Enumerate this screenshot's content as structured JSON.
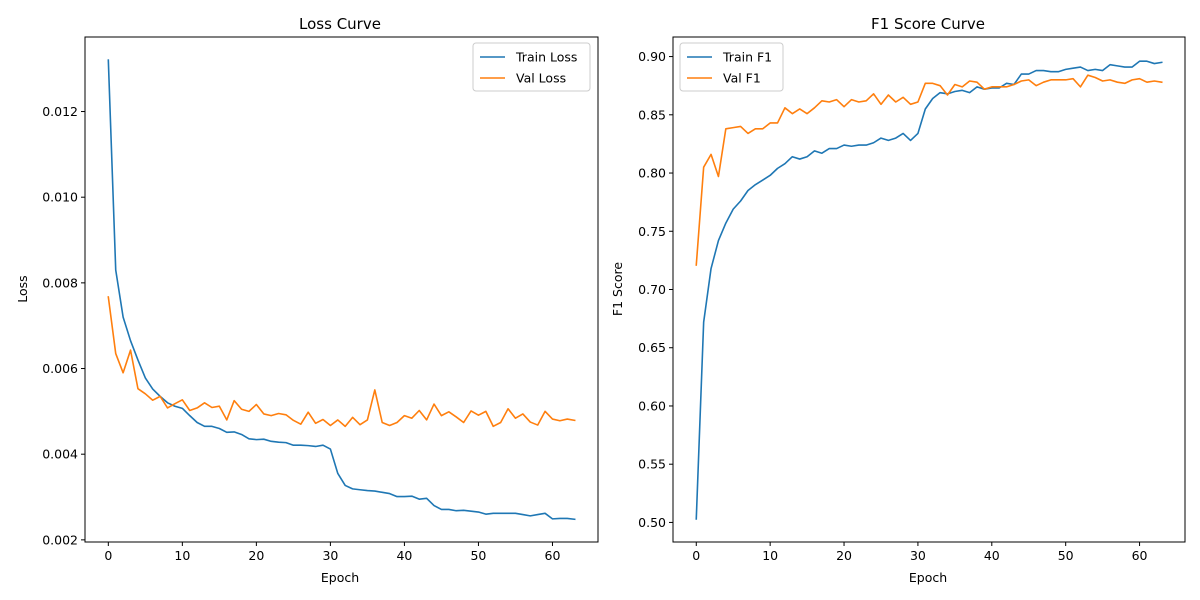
{
  "chart_data": [
    {
      "type": "line",
      "title": "Loss Curve",
      "xlabel": "Epoch",
      "ylabel": "Loss",
      "xlim": [
        -3.15,
        66.15
      ],
      "ylim": [
        0.00195,
        0.01374
      ],
      "xticks": [
        0,
        10,
        20,
        30,
        40,
        50,
        60
      ],
      "yticks": [
        0.002,
        0.004,
        0.006,
        0.008,
        0.01,
        0.012
      ],
      "ytick_labels": [
        "0.002",
        "0.004",
        "0.006",
        "0.008",
        "0.010",
        "0.012"
      ],
      "grid": false,
      "legend_position": "top-right",
      "series": [
        {
          "name": "Train Loss",
          "color": "#1f77b4",
          "values": [
            0.0132,
            0.0083,
            0.0072,
            0.00665,
            0.0062,
            0.00578,
            0.00552,
            0.00535,
            0.0052,
            0.00512,
            0.00507,
            0.0049,
            0.00474,
            0.00465,
            0.00465,
            0.0046,
            0.00451,
            0.00452,
            0.00446,
            0.00436,
            0.00434,
            0.00435,
            0.0043,
            0.00428,
            0.00427,
            0.00421,
            0.00421,
            0.0042,
            0.00418,
            0.00421,
            0.00412,
            0.00355,
            0.00327,
            0.00319,
            0.00317,
            0.00315,
            0.00314,
            0.00311,
            0.00308,
            0.00301,
            0.00301,
            0.00302,
            0.00295,
            0.00297,
            0.0028,
            0.00271,
            0.00271,
            0.00268,
            0.00269,
            0.00267,
            0.00265,
            0.0026,
            0.00262,
            0.00262,
            0.00262,
            0.00262,
            0.00259,
            0.00256,
            0.00259,
            0.00262,
            0.00249,
            0.0025,
            0.0025,
            0.00248
          ]
        },
        {
          "name": "Val Loss",
          "color": "#ff7f0e",
          "values": [
            0.00767,
            0.00635,
            0.0059,
            0.00643,
            0.00553,
            0.00541,
            0.00526,
            0.00535,
            0.00508,
            0.00518,
            0.00527,
            0.00502,
            0.00508,
            0.0052,
            0.00509,
            0.00512,
            0.0048,
            0.00525,
            0.00505,
            0.005,
            0.00516,
            0.00494,
            0.0049,
            0.00495,
            0.00492,
            0.00479,
            0.0047,
            0.00498,
            0.00472,
            0.00481,
            0.00467,
            0.0048,
            0.00465,
            0.00486,
            0.00469,
            0.0048,
            0.0055,
            0.00474,
            0.00467,
            0.00474,
            0.0049,
            0.00484,
            0.00502,
            0.0048,
            0.00517,
            0.0049,
            0.00499,
            0.00487,
            0.00474,
            0.00501,
            0.00491,
            0.005,
            0.00465,
            0.00474,
            0.00506,
            0.00484,
            0.00494,
            0.00475,
            0.00468,
            0.005,
            0.00482,
            0.00478,
            0.00482,
            0.00479
          ]
        }
      ]
    },
    {
      "type": "line",
      "title": "F1 Score Curve",
      "xlabel": "Epoch",
      "ylabel": "F1 Score",
      "xlim": [
        -3.15,
        66.15
      ],
      "ylim": [
        0.4832,
        0.9168
      ],
      "xticks": [
        0,
        10,
        20,
        30,
        40,
        50,
        60
      ],
      "yticks": [
        0.5,
        0.55,
        0.6,
        0.65,
        0.7,
        0.75,
        0.8,
        0.85,
        0.9
      ],
      "ytick_labels": [
        "0.50",
        "0.55",
        "0.60",
        "0.65",
        "0.70",
        "0.75",
        "0.80",
        "0.85",
        "0.90"
      ],
      "grid": false,
      "legend_position": "top-left",
      "series": [
        {
          "name": "Train F1",
          "color": "#1f77b4",
          "values": [
            0.503,
            0.672,
            0.718,
            0.742,
            0.757,
            0.769,
            0.776,
            0.785,
            0.79,
            0.794,
            0.798,
            0.804,
            0.808,
            0.814,
            0.812,
            0.814,
            0.819,
            0.817,
            0.821,
            0.821,
            0.824,
            0.823,
            0.824,
            0.824,
            0.826,
            0.83,
            0.828,
            0.83,
            0.834,
            0.828,
            0.834,
            0.855,
            0.864,
            0.869,
            0.868,
            0.87,
            0.871,
            0.869,
            0.874,
            0.872,
            0.873,
            0.873,
            0.877,
            0.876,
            0.885,
            0.885,
            0.888,
            0.888,
            0.887,
            0.887,
            0.889,
            0.89,
            0.891,
            0.888,
            0.889,
            0.888,
            0.893,
            0.892,
            0.891,
            0.891,
            0.896,
            0.896,
            0.894,
            0.895
          ]
        },
        {
          "name": "Val F1",
          "color": "#ff7f0e",
          "values": [
            0.721,
            0.805,
            0.816,
            0.797,
            0.838,
            0.839,
            0.84,
            0.834,
            0.838,
            0.838,
            0.843,
            0.843,
            0.856,
            0.851,
            0.855,
            0.851,
            0.856,
            0.862,
            0.861,
            0.863,
            0.857,
            0.863,
            0.861,
            0.862,
            0.868,
            0.859,
            0.867,
            0.861,
            0.865,
            0.859,
            0.861,
            0.877,
            0.877,
            0.875,
            0.867,
            0.876,
            0.874,
            0.879,
            0.878,
            0.872,
            0.874,
            0.874,
            0.874,
            0.876,
            0.879,
            0.88,
            0.875,
            0.878,
            0.88,
            0.88,
            0.88,
            0.881,
            0.874,
            0.884,
            0.882,
            0.879,
            0.88,
            0.878,
            0.877,
            0.88,
            0.881,
            0.878,
            0.879,
            0.878
          ]
        }
      ]
    }
  ]
}
